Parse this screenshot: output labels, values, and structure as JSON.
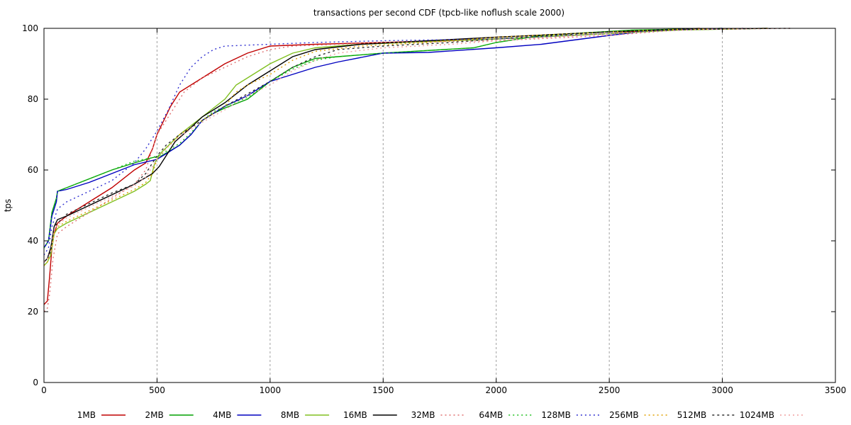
{
  "chart_data": {
    "type": "line",
    "title": "transactions per second CDF (tpcb-like noflush scale 2000)",
    "xlabel": "",
    "ylabel": "tps",
    "xlim": [
      0,
      3500
    ],
    "ylim": [
      0,
      100
    ],
    "xticks": [
      0,
      500,
      1000,
      1500,
      2000,
      2500,
      3000,
      3500
    ],
    "yticks": [
      0,
      20,
      40,
      60,
      80,
      100
    ],
    "grid": "vertical dashed",
    "legend": "bottom",
    "series": [
      {
        "name": "1MB",
        "color": "#c00000",
        "dash": "solid",
        "points": [
          [
            0,
            22
          ],
          [
            15,
            23
          ],
          [
            25,
            30
          ],
          [
            35,
            38
          ],
          [
            45,
            42
          ],
          [
            60,
            45
          ],
          [
            100,
            47
          ],
          [
            200,
            51
          ],
          [
            300,
            55
          ],
          [
            400,
            60
          ],
          [
            450,
            62
          ],
          [
            480,
            66
          ],
          [
            500,
            70
          ],
          [
            530,
            74
          ],
          [
            560,
            78
          ],
          [
            600,
            82
          ],
          [
            700,
            86
          ],
          [
            800,
            90
          ],
          [
            900,
            93
          ],
          [
            1000,
            95
          ],
          [
            1200,
            95.5
          ],
          [
            1500,
            96
          ],
          [
            2000,
            97
          ],
          [
            2500,
            98.5
          ],
          [
            2700,
            99.5
          ],
          [
            2900,
            100
          ]
        ]
      },
      {
        "name": "2MB",
        "color": "#00a000",
        "dash": "solid",
        "points": [
          [
            0,
            38
          ],
          [
            20,
            40
          ],
          [
            35,
            48
          ],
          [
            55,
            52
          ],
          [
            60,
            54
          ],
          [
            100,
            55
          ],
          [
            200,
            57.5
          ],
          [
            300,
            60
          ],
          [
            400,
            62
          ],
          [
            480,
            63.5
          ],
          [
            520,
            64
          ],
          [
            600,
            67
          ],
          [
            650,
            70
          ],
          [
            700,
            74
          ],
          [
            750,
            76
          ],
          [
            800,
            77.5
          ],
          [
            900,
            80
          ],
          [
            1000,
            85
          ],
          [
            1100,
            89
          ],
          [
            1200,
            91.5
          ],
          [
            1300,
            92
          ],
          [
            1500,
            93
          ],
          [
            1900,
            94.5
          ],
          [
            2000,
            96
          ],
          [
            2200,
            98
          ],
          [
            2600,
            99.5
          ],
          [
            3000,
            100
          ]
        ]
      },
      {
        "name": "4MB",
        "color": "#0000c0",
        "dash": "solid",
        "points": [
          [
            0,
            38
          ],
          [
            20,
            40
          ],
          [
            35,
            47
          ],
          [
            55,
            51
          ],
          [
            60,
            54
          ],
          [
            100,
            54.5
          ],
          [
            200,
            56.5
          ],
          [
            300,
            59
          ],
          [
            400,
            61.5
          ],
          [
            500,
            63
          ],
          [
            550,
            65
          ],
          [
            600,
            67
          ],
          [
            650,
            70
          ],
          [
            700,
            74
          ],
          [
            800,
            78
          ],
          [
            900,
            81
          ],
          [
            1000,
            85
          ],
          [
            1100,
            87
          ],
          [
            1200,
            89
          ],
          [
            1300,
            90.5
          ],
          [
            1500,
            93
          ],
          [
            1700,
            93.2
          ],
          [
            2000,
            94.5
          ],
          [
            2200,
            95.5
          ],
          [
            2500,
            98
          ],
          [
            2700,
            99.5
          ],
          [
            3000,
            100
          ]
        ]
      },
      {
        "name": "8MB",
        "color": "#80c020",
        "dash": "solid",
        "points": [
          [
            0,
            33
          ],
          [
            15,
            34
          ],
          [
            30,
            36
          ],
          [
            45,
            42
          ],
          [
            60,
            43.5
          ],
          [
            100,
            45
          ],
          [
            200,
            48
          ],
          [
            300,
            51
          ],
          [
            400,
            54
          ],
          [
            450,
            56
          ],
          [
            470,
            57
          ],
          [
            490,
            62
          ],
          [
            520,
            65
          ],
          [
            600,
            70
          ],
          [
            700,
            75
          ],
          [
            800,
            80
          ],
          [
            850,
            84
          ],
          [
            900,
            86
          ],
          [
            1000,
            90
          ],
          [
            1100,
            93
          ],
          [
            1200,
            94.5
          ],
          [
            1400,
            95.5
          ],
          [
            1600,
            96
          ],
          [
            2000,
            97
          ],
          [
            2500,
            98.5
          ],
          [
            2800,
            99.5
          ],
          [
            3200,
            100
          ]
        ]
      },
      {
        "name": "16MB",
        "color": "#000000",
        "dash": "solid",
        "points": [
          [
            0,
            34
          ],
          [
            15,
            35
          ],
          [
            30,
            38
          ],
          [
            45,
            44
          ],
          [
            60,
            46
          ],
          [
            100,
            47
          ],
          [
            200,
            50
          ],
          [
            300,
            53
          ],
          [
            400,
            56
          ],
          [
            480,
            59
          ],
          [
            510,
            61
          ],
          [
            540,
            64
          ],
          [
            580,
            68
          ],
          [
            650,
            72
          ],
          [
            700,
            75
          ],
          [
            800,
            79
          ],
          [
            900,
            84
          ],
          [
            1000,
            88
          ],
          [
            1100,
            92
          ],
          [
            1200,
            94
          ],
          [
            1400,
            95.5
          ],
          [
            1700,
            96.5
          ],
          [
            2000,
            97.5
          ],
          [
            2500,
            99
          ],
          [
            2800,
            99.7
          ],
          [
            3200,
            100
          ]
        ]
      },
      {
        "name": "32MB",
        "color": "#e07070",
        "dash": "2,4",
        "points": [
          [
            0,
            20
          ],
          [
            15,
            21
          ],
          [
            25,
            25
          ],
          [
            40,
            35
          ],
          [
            60,
            42
          ],
          [
            100,
            44
          ],
          [
            200,
            48
          ],
          [
            300,
            52
          ],
          [
            400,
            56
          ],
          [
            450,
            60
          ],
          [
            480,
            66
          ],
          [
            500,
            70
          ],
          [
            540,
            74
          ],
          [
            580,
            78
          ],
          [
            620,
            82
          ],
          [
            700,
            86
          ],
          [
            800,
            89
          ],
          [
            900,
            92
          ],
          [
            1000,
            94
          ],
          [
            1100,
            95
          ],
          [
            1300,
            95.5
          ],
          [
            1500,
            96
          ],
          [
            2000,
            96.5
          ],
          [
            2500,
            98
          ],
          [
            2800,
            99.5
          ],
          [
            3100,
            100
          ]
        ]
      },
      {
        "name": "64MB",
        "color": "#20c020",
        "dash": "2,4",
        "points": [
          [
            0,
            38
          ],
          [
            20,
            40
          ],
          [
            35,
            48
          ],
          [
            55,
            52
          ],
          [
            60,
            54
          ],
          [
            100,
            55
          ],
          [
            200,
            57.5
          ],
          [
            300,
            60
          ],
          [
            400,
            62.5
          ],
          [
            480,
            63.5
          ],
          [
            520,
            64.5
          ],
          [
            600,
            67.5
          ],
          [
            650,
            70.5
          ],
          [
            700,
            74
          ],
          [
            750,
            76.5
          ],
          [
            800,
            78
          ],
          [
            900,
            80.5
          ],
          [
            1000,
            85
          ],
          [
            1100,
            88.5
          ],
          [
            1200,
            91
          ],
          [
            1300,
            92
          ],
          [
            1500,
            93
          ],
          [
            1900,
            94.5
          ],
          [
            2000,
            96
          ],
          [
            2200,
            98
          ],
          [
            2600,
            99.5
          ],
          [
            3000,
            100
          ]
        ]
      },
      {
        "name": "128MB",
        "color": "#3030d0",
        "dash": "2,4",
        "points": [
          [
            0,
            36
          ],
          [
            20,
            38
          ],
          [
            35,
            44
          ],
          [
            60,
            49
          ],
          [
            100,
            51
          ],
          [
            200,
            54
          ],
          [
            300,
            57
          ],
          [
            400,
            62
          ],
          [
            450,
            66
          ],
          [
            500,
            71
          ],
          [
            550,
            77
          ],
          [
            600,
            84
          ],
          [
            650,
            89
          ],
          [
            700,
            92
          ],
          [
            750,
            94
          ],
          [
            800,
            95
          ],
          [
            1000,
            95.5
          ],
          [
            1200,
            96
          ],
          [
            1500,
            96.5
          ],
          [
            2000,
            97
          ],
          [
            2500,
            98.5
          ],
          [
            2800,
            99.5
          ],
          [
            3100,
            100
          ]
        ]
      },
      {
        "name": "256MB",
        "color": "#e0a000",
        "dash": "2,4",
        "points": [
          [
            0,
            33
          ],
          [
            15,
            34
          ],
          [
            30,
            37
          ],
          [
            45,
            42
          ],
          [
            60,
            44
          ],
          [
            100,
            45.5
          ],
          [
            200,
            48.5
          ],
          [
            300,
            51.5
          ],
          [
            400,
            54.5
          ],
          [
            450,
            56.5
          ],
          [
            480,
            59
          ],
          [
            500,
            63
          ],
          [
            540,
            66
          ],
          [
            600,
            70
          ],
          [
            700,
            74
          ],
          [
            800,
            78
          ],
          [
            850,
            82
          ],
          [
            900,
            84
          ],
          [
            1000,
            87
          ],
          [
            1100,
            91
          ],
          [
            1200,
            93.5
          ],
          [
            1400,
            95
          ],
          [
            1700,
            96
          ],
          [
            2000,
            97.5
          ],
          [
            2500,
            99
          ],
          [
            2800,
            99.7
          ],
          [
            3200,
            100
          ]
        ]
      },
      {
        "name": "512MB",
        "color": "#303030",
        "dash": "3,4",
        "points": [
          [
            0,
            34
          ],
          [
            15,
            35
          ],
          [
            30,
            37
          ],
          [
            45,
            44
          ],
          [
            60,
            45
          ],
          [
            100,
            47.5
          ],
          [
            200,
            50.5
          ],
          [
            300,
            53.5
          ],
          [
            400,
            56
          ],
          [
            450,
            59
          ],
          [
            500,
            64
          ],
          [
            540,
            67
          ],
          [
            600,
            70
          ],
          [
            700,
            74
          ],
          [
            800,
            78
          ],
          [
            900,
            81.5
          ],
          [
            1000,
            85
          ],
          [
            1100,
            89
          ],
          [
            1200,
            92
          ],
          [
            1300,
            94
          ],
          [
            1500,
            95
          ],
          [
            1800,
            96
          ],
          [
            2000,
            97
          ],
          [
            2500,
            99
          ],
          [
            2800,
            99.7
          ],
          [
            3300,
            100
          ]
        ]
      },
      {
        "name": "1024MB",
        "color": "#f0a0a0",
        "dash": "2,4",
        "points": [
          [
            0,
            34
          ],
          [
            15,
            35
          ],
          [
            30,
            37
          ],
          [
            45,
            43
          ],
          [
            60,
            44.5
          ],
          [
            100,
            46.5
          ],
          [
            200,
            49.5
          ],
          [
            300,
            52.5
          ],
          [
            400,
            55.5
          ],
          [
            450,
            58
          ],
          [
            500,
            63
          ],
          [
            540,
            66
          ],
          [
            600,
            69.5
          ],
          [
            700,
            73.5
          ],
          [
            800,
            77
          ],
          [
            900,
            81
          ],
          [
            1000,
            84
          ],
          [
            1100,
            88
          ],
          [
            1200,
            91
          ],
          [
            1300,
            93
          ],
          [
            1500,
            94.5
          ],
          [
            1800,
            95.5
          ],
          [
            2000,
            96.5
          ],
          [
            2500,
            98.5
          ],
          [
            2900,
            99.7
          ],
          [
            3300,
            100
          ]
        ]
      }
    ]
  }
}
